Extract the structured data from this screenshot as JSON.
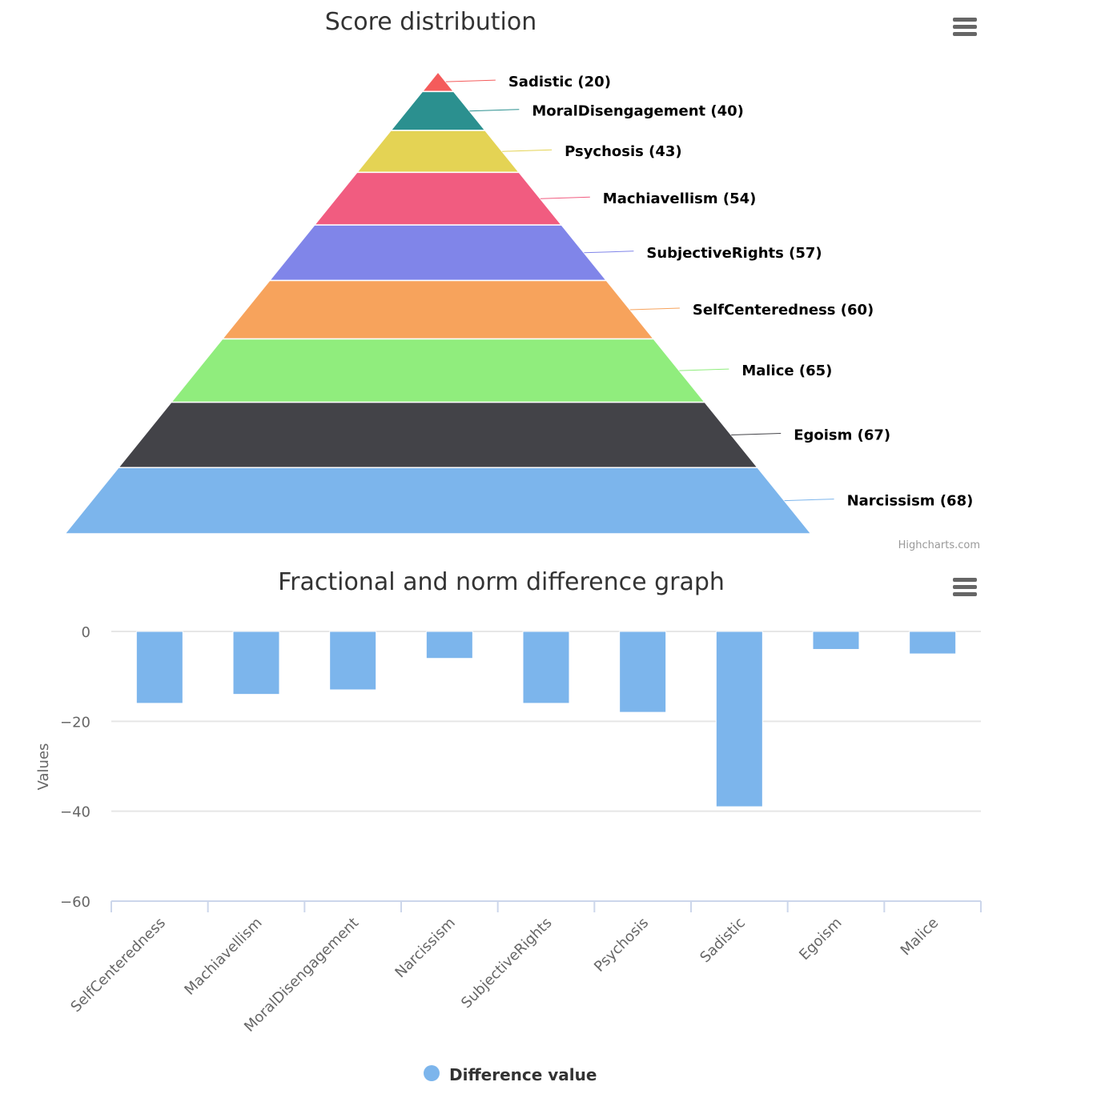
{
  "chart_data": [
    {
      "type": "pyramid",
      "title": "Score distribution",
      "credit": "Highcharts.com",
      "categories": [
        "Sadistic",
        "MoralDisengagement",
        "Psychosis",
        "Machiavellism",
        "SubjectiveRights",
        "SelfCenteredness",
        "Malice",
        "Egoism",
        "Narcissism"
      ],
      "values": [
        20,
        40,
        43,
        54,
        57,
        60,
        65,
        67,
        68
      ],
      "colors": [
        "#f45b5b",
        "#2b908f",
        "#e4d354",
        "#f15c80",
        "#8085e9",
        "#f7a35c",
        "#90ed7d",
        "#434348",
        "#7cb5ec"
      ]
    },
    {
      "type": "bar",
      "title": "Fractional and norm difference graph",
      "ylabel": "Values",
      "ylim": [
        -60,
        0
      ],
      "yticks": [
        0,
        -20,
        -40,
        -60
      ],
      "grid": true,
      "legend_position": "bottom-center",
      "categories": [
        "SelfCenteredness",
        "Machiavellism",
        "MoralDisengagement",
        "Narcissism",
        "SubjectiveRights",
        "Psychosis",
        "Sadistic",
        "Egoism",
        "Malice"
      ],
      "series": [
        {
          "name": "Difference value",
          "color": "#7cb5ec",
          "values": [
            -16,
            -14,
            -13,
            -6,
            -16,
            -18,
            -39,
            -4,
            -5
          ]
        }
      ]
    }
  ],
  "menu_icon": "hamburger-menu-icon"
}
